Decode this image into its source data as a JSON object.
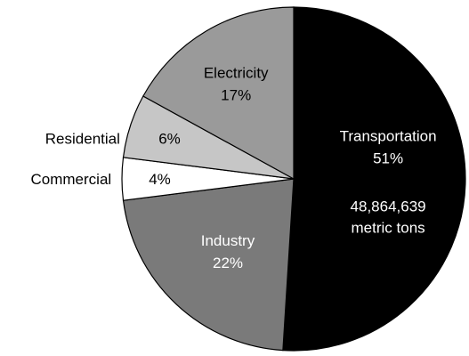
{
  "chart_data": {
    "type": "pie",
    "title": "",
    "slices": [
      {
        "label": "Transportation",
        "value": 51,
        "display": "51%",
        "note_lines": [
          "48,864,639",
          "metric tons"
        ],
        "color": "#000000",
        "text_color": "#ffffff"
      },
      {
        "label": "Industry",
        "value": 22,
        "display": "22%",
        "color": "#7a7a7a",
        "text_color": "#ffffff"
      },
      {
        "label": "Commercial",
        "value": 4,
        "display": "4%",
        "color": "#ffffff",
        "text_color": "#000000"
      },
      {
        "label": "Residential",
        "value": 6,
        "display": "6%",
        "color": "#c6c6c6",
        "text_color": "#000000"
      },
      {
        "label": "Electricity",
        "value": 17,
        "display": "17%",
        "color": "#9a9a9a",
        "text_color": "#000000"
      }
    ]
  }
}
